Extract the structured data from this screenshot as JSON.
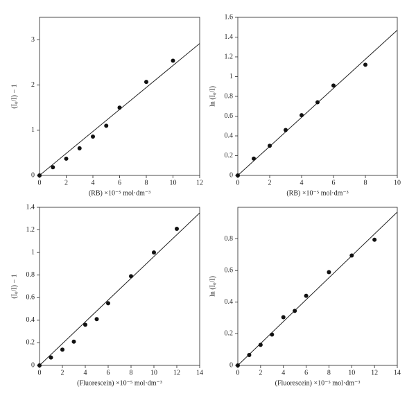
{
  "chart_data": [
    {
      "type": "scatter",
      "x_label": "(RB) ×10⁻⁵ mol·dm⁻³",
      "y_label": "(I₀/I) − 1",
      "x": [
        0,
        1,
        2,
        3,
        4,
        5,
        6,
        8,
        10
      ],
      "values": [
        0,
        0.18,
        0.37,
        0.6,
        0.86,
        1.1,
        1.5,
        2.07,
        2.54
      ],
      "fit": {
        "x": [
          0,
          12
        ],
        "values": [
          0,
          2.92
        ]
      },
      "color": "#111",
      "xlim": [
        0,
        12
      ],
      "xticks": [
        0,
        2,
        4,
        6,
        8,
        10,
        12
      ],
      "ylim": [
        0,
        3.5
      ],
      "yticks": [
        0,
        1,
        2,
        3
      ]
    },
    {
      "type": "scatter",
      "x_label": "(RB) ×10⁻⁵ mol·dm⁻³",
      "y_label": "ln (I₀/I)",
      "x": [
        0,
        1,
        2,
        3,
        4,
        5,
        6,
        8
      ],
      "values": [
        0,
        0.17,
        0.3,
        0.46,
        0.61,
        0.74,
        0.91,
        1.12
      ],
      "fit": {
        "x": [
          0,
          10
        ],
        "values": [
          0,
          1.47
        ]
      },
      "color": "#111",
      "xlim": [
        0,
        10
      ],
      "xticks": [
        0,
        2,
        4,
        6,
        8,
        10
      ],
      "ylim": [
        0,
        1.6
      ],
      "yticks": [
        0,
        0.2,
        0.4,
        0.6,
        0.8,
        1,
        1.2,
        1.4,
        1.6
      ]
    },
    {
      "type": "scatter",
      "x_label": "(Fluorescein) ×10⁻⁵ mol·dm⁻³",
      "y_label": "(I₀/I) − 1",
      "x": [
        0,
        1,
        2,
        3,
        4,
        5,
        6,
        8,
        10,
        12
      ],
      "values": [
        0,
        0.07,
        0.14,
        0.21,
        0.36,
        0.41,
        0.55,
        0.79,
        1.0,
        1.21
      ],
      "fit": {
        "x": [
          0,
          14
        ],
        "values": [
          0,
          1.35
        ]
      },
      "color": "#111",
      "xlim": [
        0,
        14
      ],
      "xticks": [
        0,
        2,
        4,
        6,
        8,
        10,
        12,
        14
      ],
      "ylim": [
        0,
        1.4
      ],
      "yticks": [
        0,
        0.2,
        0.4,
        0.6,
        0.8,
        1,
        1.2,
        1.4
      ]
    },
    {
      "type": "scatter",
      "x_label": "(Fluorescein) ×10⁻⁵ mol·dm⁻³",
      "y_label": "ln (I₀/I)",
      "x": [
        0,
        1,
        2,
        3,
        4,
        5,
        6,
        8,
        10,
        12
      ],
      "values": [
        0,
        0.066,
        0.13,
        0.195,
        0.305,
        0.345,
        0.44,
        0.59,
        0.695,
        0.795
      ],
      "fit": {
        "x": [
          0,
          14
        ],
        "values": [
          0,
          0.97
        ]
      },
      "color": "#111",
      "xlim": [
        0,
        14
      ],
      "xticks": [
        0,
        2,
        4,
        6,
        8,
        10,
        12,
        14
      ],
      "ylim": [
        0,
        1
      ],
      "yticks": [
        0,
        0.2,
        0.4,
        0.6,
        0.8
      ]
    }
  ]
}
